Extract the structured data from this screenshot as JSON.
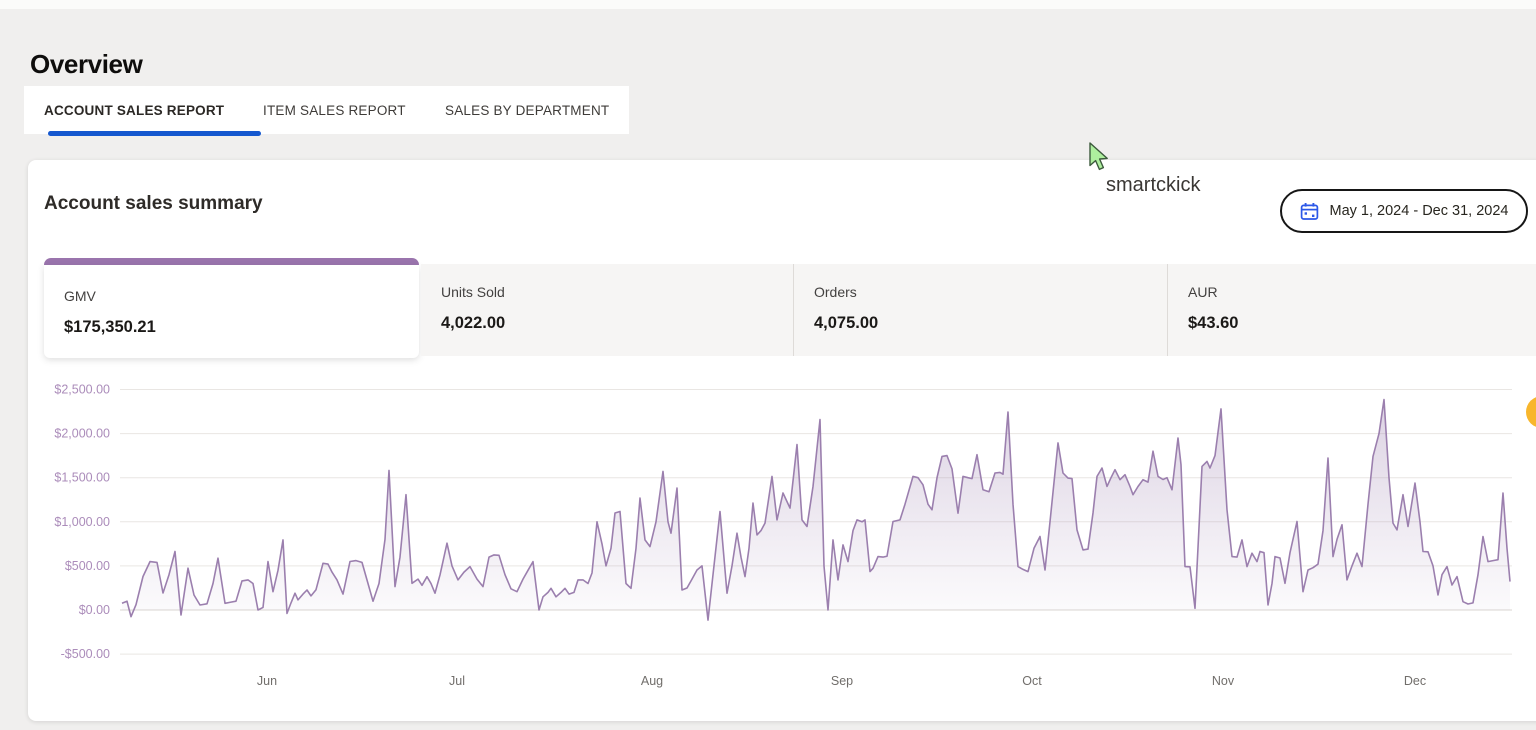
{
  "page": {
    "title": "Overview"
  },
  "tabs": [
    {
      "label": "ACCOUNT SALES REPORT",
      "active": true
    },
    {
      "label": "ITEM SALES REPORT",
      "active": false
    },
    {
      "label": "SALES BY DEPARTMENT",
      "active": false
    }
  ],
  "summary_card": {
    "title": "Account sales summary",
    "date_range": "May 1, 2024 - Dec 31, 2024",
    "overlay_text": "smartckick"
  },
  "metrics": [
    {
      "label": "GMV",
      "value": "$175,350.21",
      "selected": true
    },
    {
      "label": "Units Sold",
      "value": "4,022.00",
      "selected": false
    },
    {
      "label": "Orders",
      "value": "4,075.00",
      "selected": false
    },
    {
      "label": "AUR",
      "value": "$43.60",
      "selected": false
    }
  ],
  "colors": {
    "accent_purple": "#9a74ad",
    "line_purple": "#9b7fae",
    "tab_underline_blue": "#1558cf",
    "calendar_icon_blue": "#2c58e8",
    "fab_yellow": "#f8b62c",
    "y_tick_purple": "#ab8cba",
    "x_tick_gray": "#716e6b",
    "grid_gray": "#e9e6e3"
  },
  "chart_data": {
    "type": "area",
    "series_name": "GMV",
    "x_ticks": [
      "Jun",
      "Jul",
      "Aug",
      "Sep",
      "Oct",
      "Nov",
      "Dec"
    ],
    "y_ticks": [
      {
        "label": "$2,500.00",
        "value": 2500
      },
      {
        "label": "$2,000.00",
        "value": 2000
      },
      {
        "label": "$1,500.00",
        "value": 1500
      },
      {
        "label": "$1,000.00",
        "value": 1000
      },
      {
        "label": "$500.00",
        "value": 500
      },
      {
        "label": "$0.00",
        "value": 0
      },
      {
        "label": "-$500.00",
        "value": -500
      }
    ],
    "ylim": [
      -500,
      2500
    ],
    "x_range_label": "May 1, 2024 - Dec 31, 2024",
    "grid": true,
    "legend": "none",
    "points": [
      [
        122,
        76
      ],
      [
        127,
        100
      ],
      [
        131,
        -76
      ],
      [
        136,
        60
      ],
      [
        143,
        380
      ],
      [
        150,
        549
      ],
      [
        157,
        540
      ],
      [
        163,
        193
      ],
      [
        169,
        400
      ],
      [
        175,
        663
      ],
      [
        181,
        -57
      ],
      [
        188,
        474
      ],
      [
        194,
        170
      ],
      [
        200,
        57
      ],
      [
        207,
        70
      ],
      [
        213,
        300
      ],
      [
        218,
        587
      ],
      [
        225,
        76
      ],
      [
        231,
        90
      ],
      [
        236,
        100
      ],
      [
        242,
        330
      ],
      [
        248,
        341
      ],
      [
        253,
        300
      ],
      [
        258,
        0
      ],
      [
        263,
        30
      ],
      [
        268,
        549
      ],
      [
        273,
        208
      ],
      [
        278,
        450
      ],
      [
        283,
        795
      ],
      [
        287,
        -38
      ],
      [
        291,
        80
      ],
      [
        295,
        190
      ],
      [
        298,
        114
      ],
      [
        303,
        180
      ],
      [
        307,
        227
      ],
      [
        311,
        160
      ],
      [
        316,
        230
      ],
      [
        323,
        530
      ],
      [
        328,
        520
      ],
      [
        332,
        430
      ],
      [
        337,
        341
      ],
      [
        343,
        180
      ],
      [
        350,
        550
      ],
      [
        356,
        560
      ],
      [
        362,
        540
      ],
      [
        368,
        300
      ],
      [
        373,
        100
      ],
      [
        379,
        300
      ],
      [
        385,
        800
      ],
      [
        389,
        1583
      ],
      [
        395,
        265
      ],
      [
        400,
        600
      ],
      [
        406,
        1307
      ],
      [
        412,
        303
      ],
      [
        418,
        350
      ],
      [
        422,
        280
      ],
      [
        427,
        378
      ],
      [
        431,
        300
      ],
      [
        435,
        190
      ],
      [
        440,
        398
      ],
      [
        447,
        757
      ],
      [
        452,
        500
      ],
      [
        458,
        341
      ],
      [
        464,
        430
      ],
      [
        470,
        492
      ],
      [
        477,
        350
      ],
      [
        483,
        265
      ],
      [
        489,
        600
      ],
      [
        494,
        625
      ],
      [
        499,
        620
      ],
      [
        505,
        400
      ],
      [
        511,
        240
      ],
      [
        517,
        208
      ],
      [
        523,
        350
      ],
      [
        528,
        450
      ],
      [
        533,
        549
      ],
      [
        539,
        0
      ],
      [
        543,
        150
      ],
      [
        548,
        200
      ],
      [
        551,
        246
      ],
      [
        556,
        150
      ],
      [
        561,
        200
      ],
      [
        565,
        246
      ],
      [
        569,
        180
      ],
      [
        574,
        200
      ],
      [
        578,
        341
      ],
      [
        583,
        341
      ],
      [
        588,
        300
      ],
      [
        592,
        420
      ],
      [
        597,
        1000
      ],
      [
        602,
        750
      ],
      [
        606,
        500
      ],
      [
        611,
        700
      ],
      [
        615,
        1100
      ],
      [
        620,
        1117
      ],
      [
        626,
        300
      ],
      [
        631,
        246
      ],
      [
        636,
        700
      ],
      [
        640,
        1269
      ],
      [
        645,
        795
      ],
      [
        650,
        719
      ],
      [
        656,
        1000
      ],
      [
        663,
        1571
      ],
      [
        668,
        1000
      ],
      [
        671,
        871
      ],
      [
        677,
        1382
      ],
      [
        682,
        227
      ],
      [
        687,
        250
      ],
      [
        692,
        350
      ],
      [
        697,
        454
      ],
      [
        702,
        500
      ],
      [
        708,
        -114
      ],
      [
        713,
        400
      ],
      [
        720,
        1117
      ],
      [
        727,
        190
      ],
      [
        732,
        500
      ],
      [
        737,
        871
      ],
      [
        741,
        600
      ],
      [
        745,
        379
      ],
      [
        749,
        700
      ],
      [
        753,
        1212
      ],
      [
        757,
        852
      ],
      [
        761,
        900
      ],
      [
        765,
        985
      ],
      [
        772,
        1515
      ],
      [
        777,
        1022
      ],
      [
        783,
        1326
      ],
      [
        790,
        1155
      ],
      [
        797,
        1875
      ],
      [
        802,
        1022
      ],
      [
        807,
        947
      ],
      [
        813,
        1400
      ],
      [
        820,
        2159
      ],
      [
        824,
        500
      ],
      [
        828,
        0
      ],
      [
        833,
        795
      ],
      [
        838,
        341
      ],
      [
        843,
        738
      ],
      [
        848,
        549
      ],
      [
        853,
        900
      ],
      [
        857,
        1022
      ],
      [
        862,
        1000
      ],
      [
        865,
        1022
      ],
      [
        870,
        435
      ],
      [
        873,
        473
      ],
      [
        878,
        606
      ],
      [
        883,
        600
      ],
      [
        887,
        610
      ],
      [
        893,
        1003
      ],
      [
        900,
        1022
      ],
      [
        905,
        1200
      ],
      [
        913,
        1515
      ],
      [
        918,
        1500
      ],
      [
        923,
        1420
      ],
      [
        928,
        1200
      ],
      [
        932,
        1136
      ],
      [
        937,
        1500
      ],
      [
        942,
        1742
      ],
      [
        947,
        1750
      ],
      [
        952,
        1600
      ],
      [
        958,
        1098
      ],
      [
        963,
        1515
      ],
      [
        968,
        1500
      ],
      [
        972,
        1490
      ],
      [
        977,
        1761
      ],
      [
        983,
        1363
      ],
      [
        989,
        1340
      ],
      [
        995,
        1553
      ],
      [
        1000,
        1560
      ],
      [
        1003,
        1540
      ],
      [
        1008,
        2245
      ],
      [
        1013,
        1200
      ],
      [
        1018,
        492
      ],
      [
        1023,
        460
      ],
      [
        1028,
        435
      ],
      [
        1034,
        700
      ],
      [
        1040,
        833
      ],
      [
        1045,
        454
      ],
      [
        1050,
        1000
      ],
      [
        1058,
        1894
      ],
      [
        1063,
        1553
      ],
      [
        1068,
        1496
      ],
      [
        1072,
        1490
      ],
      [
        1077,
        908
      ],
      [
        1083,
        681
      ],
      [
        1088,
        690
      ],
      [
        1093,
        1100
      ],
      [
        1097,
        1515
      ],
      [
        1102,
        1610
      ],
      [
        1107,
        1401
      ],
      [
        1111,
        1500
      ],
      [
        1115,
        1591
      ],
      [
        1120,
        1477
      ],
      [
        1125,
        1534
      ],
      [
        1130,
        1400
      ],
      [
        1133,
        1307
      ],
      [
        1138,
        1400
      ],
      [
        1143,
        1477
      ],
      [
        1148,
        1450
      ],
      [
        1153,
        1800
      ],
      [
        1158,
        1515
      ],
      [
        1163,
        1480
      ],
      [
        1167,
        1500
      ],
      [
        1172,
        1363
      ],
      [
        1178,
        1950
      ],
      [
        1181,
        1647
      ],
      [
        1185,
        492
      ],
      [
        1190,
        490
      ],
      [
        1195,
        19
      ],
      [
        1202,
        1628
      ],
      [
        1207,
        1685
      ],
      [
        1210,
        1610
      ],
      [
        1215,
        1750
      ],
      [
        1221,
        2280
      ],
      [
        1227,
        1136
      ],
      [
        1232,
        606
      ],
      [
        1237,
        600
      ],
      [
        1242,
        795
      ],
      [
        1247,
        492
      ],
      [
        1252,
        644
      ],
      [
        1257,
        549
      ],
      [
        1260,
        663
      ],
      [
        1264,
        650
      ],
      [
        1268,
        57
      ],
      [
        1272,
        300
      ],
      [
        1275,
        606
      ],
      [
        1280,
        590
      ],
      [
        1285,
        303
      ],
      [
        1290,
        650
      ],
      [
        1297,
        1003
      ],
      [
        1303,
        208
      ],
      [
        1308,
        454
      ],
      [
        1313,
        480
      ],
      [
        1318,
        520
      ],
      [
        1323,
        900
      ],
      [
        1328,
        1723
      ],
      [
        1333,
        606
      ],
      [
        1337,
        800
      ],
      [
        1342,
        966
      ],
      [
        1347,
        341
      ],
      [
        1352,
        500
      ],
      [
        1357,
        644
      ],
      [
        1362,
        492
      ],
      [
        1368,
        1200
      ],
      [
        1373,
        1742
      ],
      [
        1379,
        2000
      ],
      [
        1384,
        2386
      ],
      [
        1389,
        1500
      ],
      [
        1393,
        985
      ],
      [
        1397,
        908
      ],
      [
        1403,
        1307
      ],
      [
        1408,
        947
      ],
      [
        1415,
        1439
      ],
      [
        1420,
        1000
      ],
      [
        1423,
        663
      ],
      [
        1428,
        660
      ],
      [
        1433,
        500
      ],
      [
        1438,
        170
      ],
      [
        1442,
        400
      ],
      [
        1447,
        492
      ],
      [
        1452,
        284
      ],
      [
        1457,
        379
      ],
      [
        1463,
        94
      ],
      [
        1468,
        68
      ],
      [
        1473,
        80
      ],
      [
        1478,
        400
      ],
      [
        1483,
        833
      ],
      [
        1488,
        549
      ],
      [
        1493,
        560
      ],
      [
        1498,
        570
      ],
      [
        1503,
        1325
      ],
      [
        1507,
        700
      ],
      [
        1510,
        322
      ]
    ]
  }
}
